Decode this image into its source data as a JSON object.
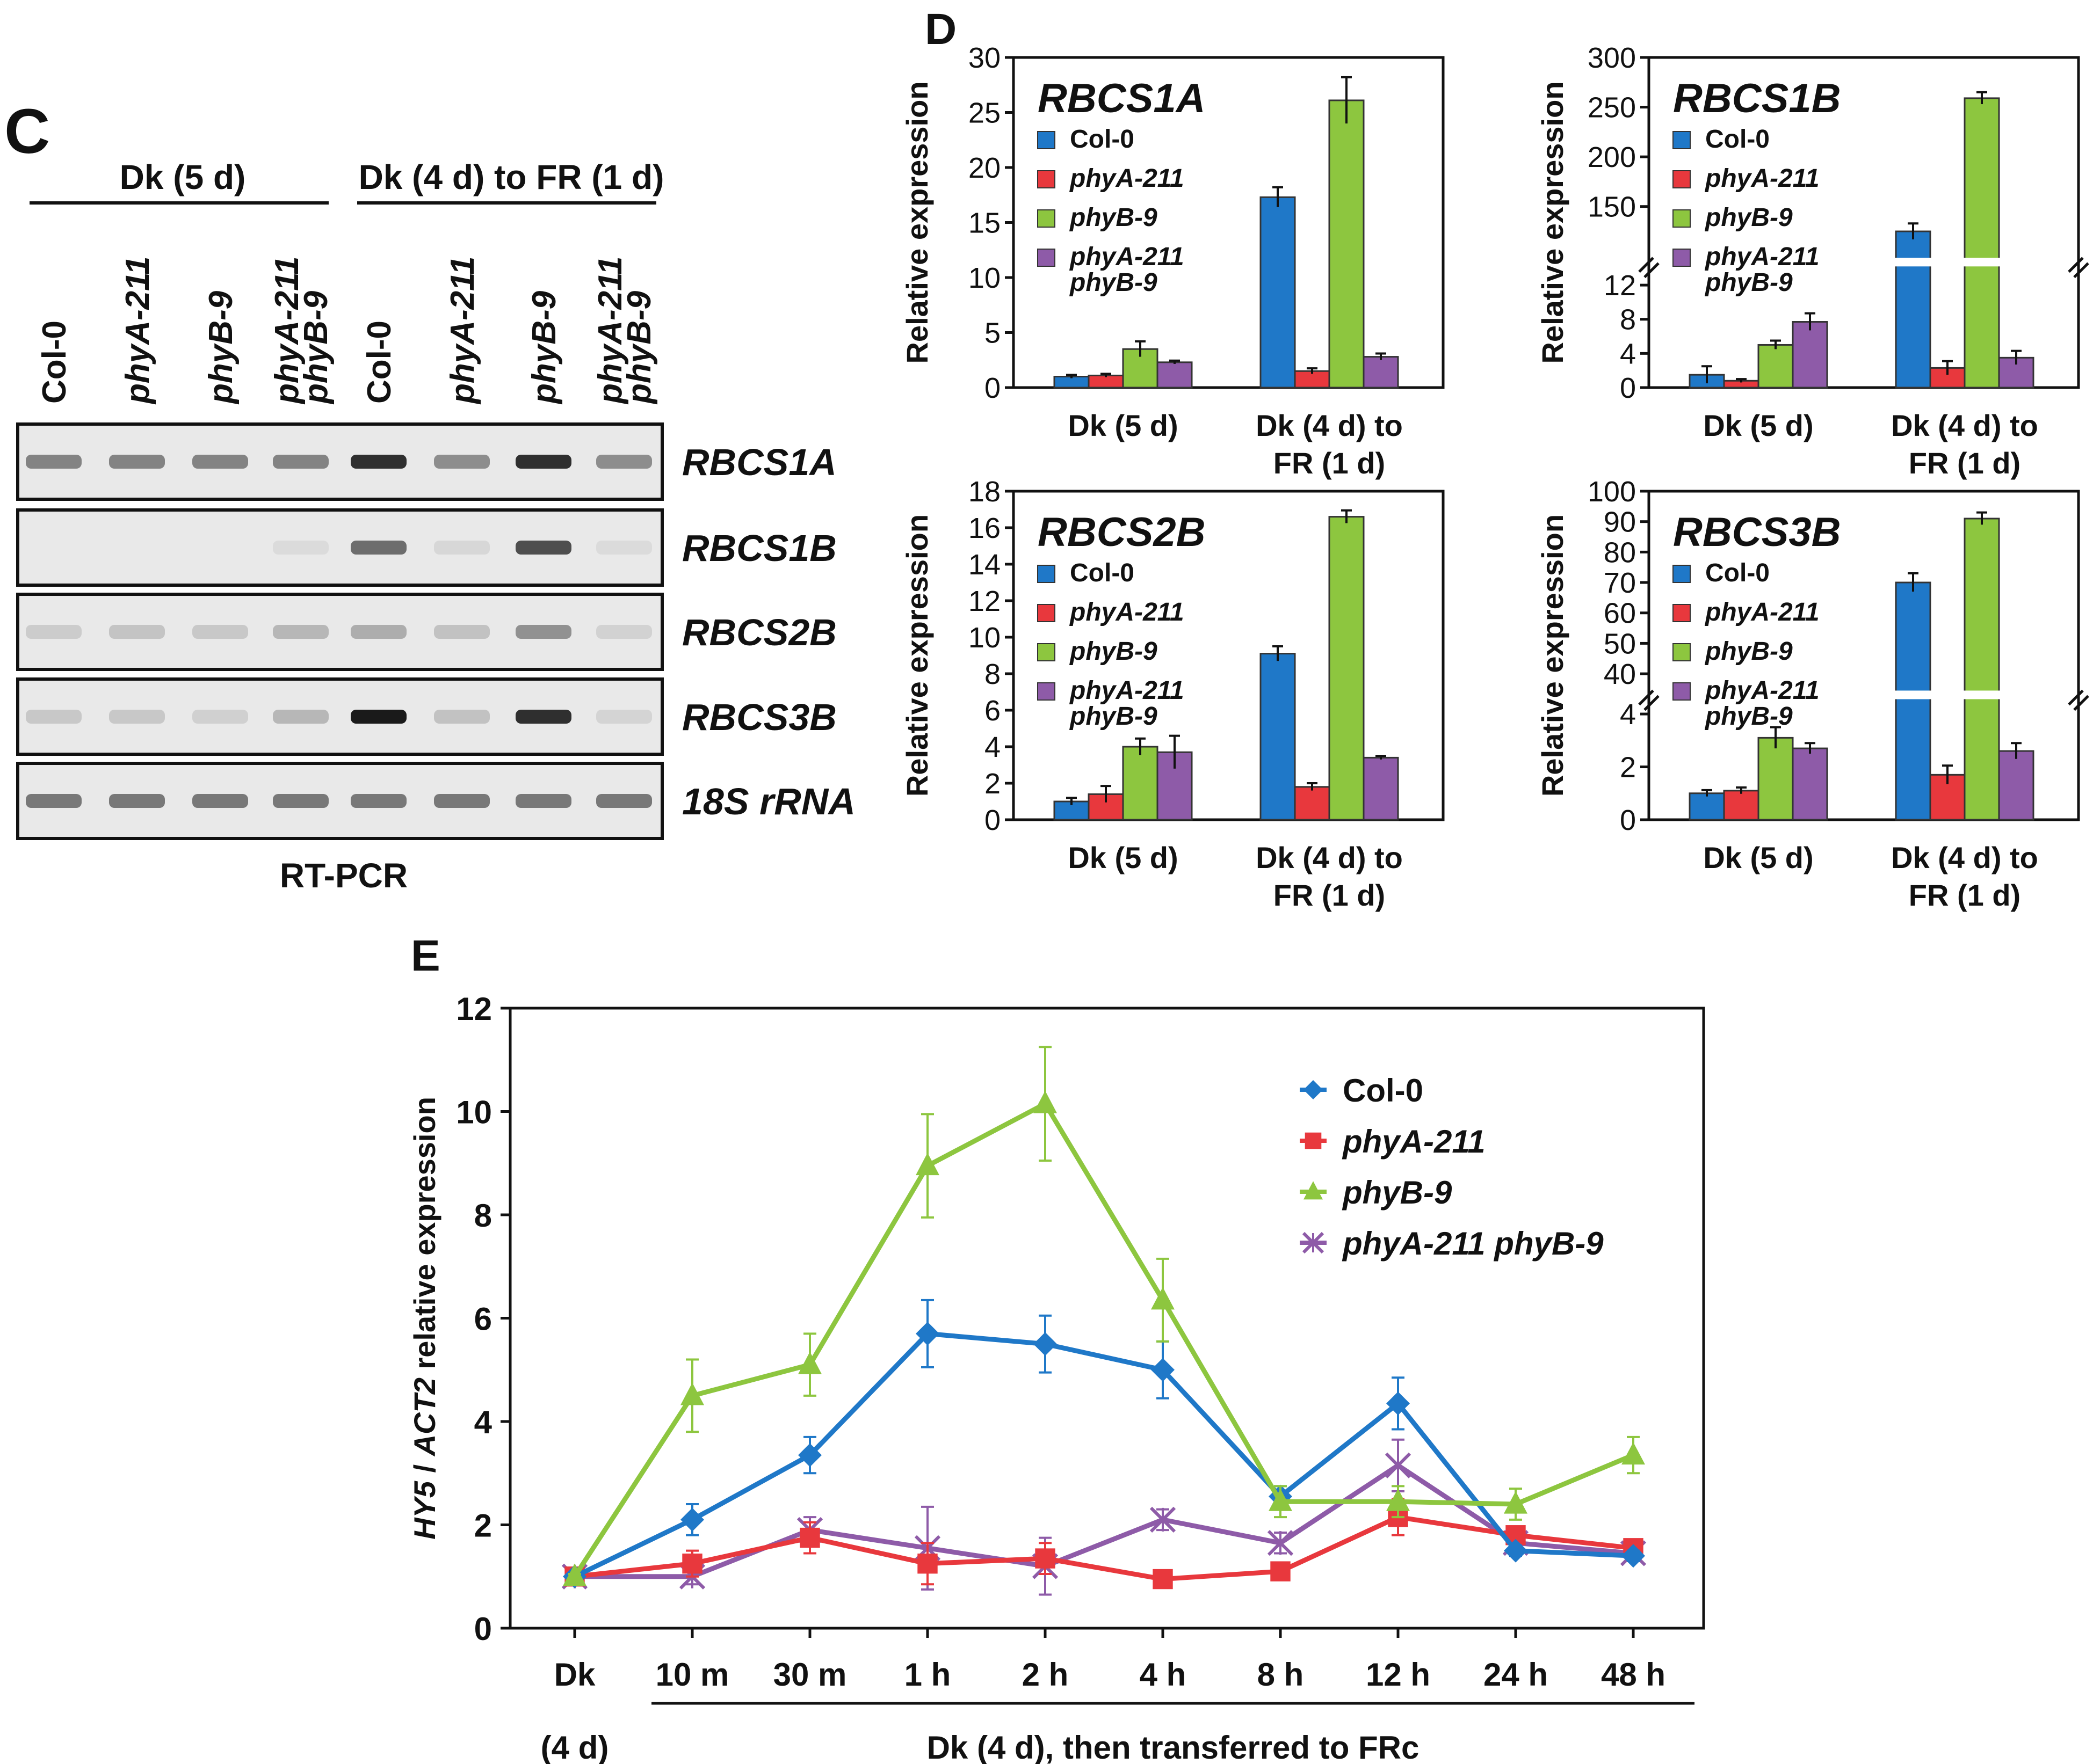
{
  "panel_c": {
    "letter": "C",
    "group_labels": [
      "Dk (5 d)",
      "Dk (4 d) to FR (1 d)"
    ],
    "lanes": [
      [
        "Col-0"
      ],
      [
        "phyA-211"
      ],
      [
        "phyB-9"
      ],
      [
        "phyA-211",
        "phyB-9"
      ],
      [
        "Col-0"
      ],
      [
        "phyA-211"
      ],
      [
        "phyB-9"
      ],
      [
        "phyA-211",
        "phyB-9"
      ]
    ],
    "genes": [
      "RBCS1A",
      "RBCS1B",
      "RBCS2B",
      "RBCS3B",
      "18S rRNA"
    ],
    "band_intensity": [
      [
        0.45,
        0.45,
        0.45,
        0.45,
        0.85,
        0.4,
        0.85,
        0.4
      ],
      [
        0.0,
        0.0,
        0.0,
        0.03,
        0.55,
        0.05,
        0.7,
        0.03
      ],
      [
        0.1,
        0.14,
        0.12,
        0.2,
        0.25,
        0.15,
        0.38,
        0.07
      ],
      [
        0.12,
        0.12,
        0.08,
        0.2,
        0.95,
        0.15,
        0.85,
        0.06
      ],
      [
        0.5,
        0.5,
        0.5,
        0.5,
        0.5,
        0.5,
        0.5,
        0.5
      ]
    ],
    "caption": "RT-PCR"
  },
  "panel_d": {
    "letter": "D",
    "ylabel": "Relative expression",
    "series_names": [
      [
        "Col-0"
      ],
      [
        "phyA-211"
      ],
      [
        "phyB-9"
      ],
      [
        "phyA-211",
        "phyB-9"
      ]
    ],
    "series_italic": [
      false,
      true,
      true,
      true
    ],
    "colors": [
      "#1f78c8",
      "#e8383d",
      "#8dc63f",
      "#8e5ba8"
    ]
  },
  "chart_data": [
    {
      "type": "bar",
      "title": "RBCS1A",
      "categories": [
        [
          "Dk (5 d)"
        ],
        [
          "Dk (4 d) to",
          "FR (1 d)"
        ]
      ],
      "ylabel": "Relative expression",
      "ylim": [
        0,
        30
      ],
      "yticks": [
        "0",
        "5",
        "10",
        "15",
        "20",
        "25",
        "30"
      ],
      "series": [
        {
          "name": "Col-0",
          "values": [
            1.0,
            17.3
          ],
          "errors": [
            0.15,
            0.9
          ]
        },
        {
          "name": "phyA-211",
          "values": [
            1.1,
            1.5
          ],
          "errors": [
            0.15,
            0.25
          ]
        },
        {
          "name": "phyB-9",
          "values": [
            3.5,
            26.1
          ],
          "errors": [
            0.7,
            2.1
          ]
        },
        {
          "name": "phyA-211 phyB-9",
          "values": [
            2.3,
            2.8
          ],
          "errors": [
            0.15,
            0.3
          ]
        }
      ]
    },
    {
      "type": "bar",
      "title": "RBCS1B",
      "categories": [
        [
          "Dk (5 d)"
        ],
        [
          "Dk (4 d) to",
          "FR (1 d)"
        ]
      ],
      "ylabel": "Relative expression",
      "axis_break": {
        "lower": [
          0,
          14
        ],
        "upper": [
          100,
          300
        ]
      },
      "yticks": [
        "0",
        "4",
        "8",
        "12",
        "150",
        "200",
        "250",
        "300"
      ],
      "series": [
        {
          "name": "Col-0",
          "values": [
            1.5,
            125
          ],
          "errors": [
            1.0,
            8
          ]
        },
        {
          "name": "phyA-211",
          "values": [
            0.8,
            2.3
          ],
          "errors": [
            0.2,
            0.8
          ]
        },
        {
          "name": "phyB-9",
          "values": [
            5.0,
            259
          ],
          "errors": [
            0.5,
            6
          ]
        },
        {
          "name": "phyA-211 phyB-9",
          "values": [
            7.7,
            3.5
          ],
          "errors": [
            1.0,
            0.8
          ]
        }
      ]
    },
    {
      "type": "bar",
      "title": "RBCS2B",
      "categories": [
        [
          "Dk (5 d)"
        ],
        [
          "Dk (4 d) to",
          "FR (1 d)"
        ]
      ],
      "ylabel": "Relative expression",
      "ylim": [
        0,
        18
      ],
      "yticks": [
        "0",
        "2",
        "4",
        "6",
        "8",
        "10",
        "12",
        "14",
        "16",
        "18"
      ],
      "series": [
        {
          "name": "Col-0",
          "values": [
            1.0,
            9.1
          ],
          "errors": [
            0.2,
            0.4
          ]
        },
        {
          "name": "phyA-211",
          "values": [
            1.4,
            1.8
          ],
          "errors": [
            0.45,
            0.2
          ]
        },
        {
          "name": "phyB-9",
          "values": [
            4.0,
            16.6
          ],
          "errors": [
            0.45,
            0.35
          ]
        },
        {
          "name": "phyA-211 phyB-9",
          "values": [
            3.7,
            3.4
          ],
          "errors": [
            0.9,
            0.1
          ]
        }
      ]
    },
    {
      "type": "bar",
      "title": "RBCS3B",
      "categories": [
        [
          "Dk (5 d)"
        ],
        [
          "Dk (4 d) to",
          "FR (1 d)"
        ]
      ],
      "ylabel": "Relative expression",
      "axis_break": {
        "lower": [
          0,
          4.5
        ],
        "upper": [
          35,
          100
        ]
      },
      "yticks": [
        "0",
        "2",
        "4",
        "40",
        "50",
        "60",
        "70",
        "80",
        "90",
        "100"
      ],
      "series": [
        {
          "name": "Col-0",
          "values": [
            1.0,
            70
          ],
          "errors": [
            0.12,
            3
          ]
        },
        {
          "name": "phyA-211",
          "values": [
            1.1,
            1.7
          ],
          "errors": [
            0.12,
            0.35
          ]
        },
        {
          "name": "phyB-9",
          "values": [
            3.1,
            91
          ],
          "errors": [
            0.4,
            2
          ]
        },
        {
          "name": "phyA-211 phyB-9",
          "values": [
            2.7,
            2.6
          ],
          "errors": [
            0.2,
            0.3
          ]
        }
      ]
    },
    {
      "type": "line",
      "title": "",
      "x": [
        "Dk",
        "10 m",
        "30 m",
        "1 h",
        "2 h",
        "4 h",
        "8 h",
        "12 h",
        "24 h",
        "48 h"
      ],
      "ylabel_parts": [
        "HY5",
        " / ",
        "ACT2",
        " relative expression"
      ],
      "ylim": [
        0,
        12
      ],
      "yticks": [
        "0",
        "2",
        "4",
        "6",
        "8",
        "10",
        "12"
      ],
      "series": [
        {
          "name": "Col-0",
          "marker": "diamond",
          "values": [
            1.0,
            2.1,
            3.35,
            5.7,
            5.5,
            5.0,
            2.55,
            4.35,
            1.5,
            1.4
          ],
          "errors": [
            0.05,
            0.3,
            0.35,
            0.65,
            0.55,
            0.55,
            0.2,
            0.5,
            0.1,
            0.1
          ]
        },
        {
          "name": "phyA-211",
          "marker": "square",
          "values": [
            1.0,
            1.25,
            1.75,
            1.25,
            1.35,
            0.95,
            1.1,
            2.15,
            1.8,
            1.55
          ],
          "errors": [
            0.05,
            0.25,
            0.3,
            0.4,
            0.3,
            0.1,
            0.15,
            0.35,
            0.15,
            0.1
          ]
        },
        {
          "name": "phyB-9",
          "marker": "triangle",
          "values": [
            1.0,
            4.5,
            5.1,
            8.95,
            10.15,
            6.35,
            2.45,
            2.45,
            2.4,
            3.35
          ],
          "errors": [
            0.05,
            0.7,
            0.6,
            1.0,
            1.1,
            0.8,
            0.3,
            0.3,
            0.3,
            0.35
          ]
        },
        {
          "name": "phyA-211 phyB-9",
          "marker": "x",
          "values": [
            1.0,
            1.0,
            1.9,
            1.55,
            1.2,
            2.1,
            1.65,
            3.15,
            1.65,
            1.45
          ],
          "errors": [
            0.05,
            0.15,
            0.25,
            0.8,
            0.55,
            0.2,
            0.2,
            0.5,
            0.2,
            0.15
          ]
        }
      ]
    }
  ],
  "panel_e": {
    "letter": "E",
    "x_sub_label": "(4 d)",
    "x_group_label": "Dk (4 d), then transferred to FRc",
    "legend": [
      "Col-0",
      "phyA-211",
      "phyB-9",
      "phyA-211 phyB-9"
    ],
    "legend_italic": [
      false,
      true,
      true,
      true
    ],
    "colors": [
      "#1f78c8",
      "#e8383d",
      "#8dc63f",
      "#8e5ba8"
    ]
  }
}
